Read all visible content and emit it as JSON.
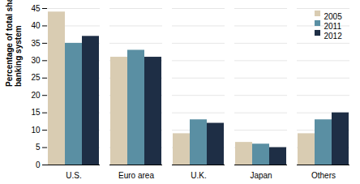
{
  "chart_data": {
    "type": "bar",
    "categories": [
      "U.S.",
      "Euro area",
      "U.K.",
      "Japan",
      "Others"
    ],
    "series": [
      {
        "name": "2005",
        "color": "#d9ccb2",
        "values": [
          44,
          31,
          9,
          6.5,
          9
        ]
      },
      {
        "name": "2011",
        "color": "#5a8fa3",
        "values": [
          35,
          33,
          13,
          6,
          13
        ]
      },
      {
        "name": "2012",
        "color": "#1e2e45",
        "values": [
          37,
          31,
          12,
          5,
          15
        ]
      }
    ],
    "ylabel": "Percentage of total shadow\nbanking system",
    "ylim": [
      0,
      45
    ],
    "yticks": [
      0,
      5,
      10,
      15,
      20,
      25,
      30,
      35,
      40,
      45
    ],
    "grid": true,
    "legend": "upper right"
  }
}
